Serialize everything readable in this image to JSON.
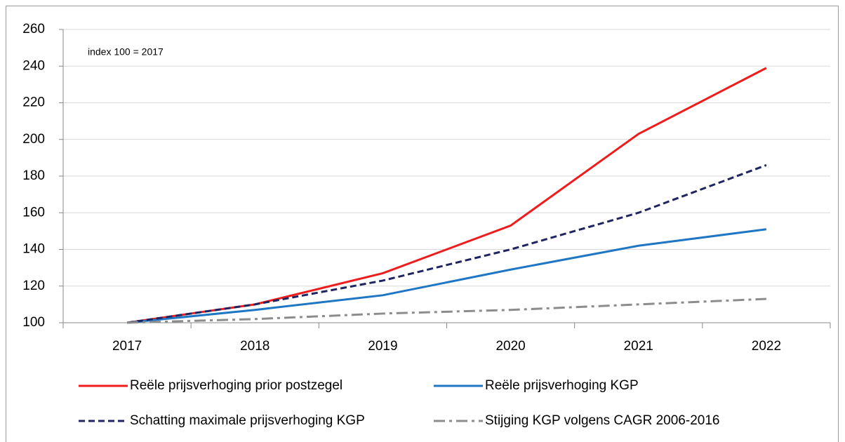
{
  "chart_data": {
    "type": "line",
    "annotation": "index 100 = 2017",
    "categories": [
      "2017",
      "2018",
      "2019",
      "2020",
      "2021",
      "2022"
    ],
    "series": [
      {
        "name": "Reële prijsverhoging prior postzegel",
        "color": "#ee1c1c",
        "dash": "solid",
        "values": [
          100,
          110,
          127,
          153,
          203,
          239
        ]
      },
      {
        "name": "Reële prijsverhoging KGP",
        "color": "#1f77c4",
        "dash": "solid",
        "values": [
          100,
          107,
          115,
          129,
          142,
          151
        ]
      },
      {
        "name": "Schatting maximale prijsverhoging KGP",
        "color": "#1f2560",
        "dash": "dash",
        "values": [
          100,
          110,
          123,
          140,
          160,
          186
        ]
      },
      {
        "name": "Stijging KGP volgens CAGR 2006-2016",
        "color": "#8c8c8c",
        "dash": "dashdot",
        "values": [
          100,
          102,
          105,
          107,
          110,
          113
        ]
      }
    ],
    "ylim": [
      100,
      260
    ],
    "yticks": [
      100,
      120,
      140,
      160,
      180,
      200,
      220,
      240,
      260
    ],
    "grid": true,
    "legend": "bottom"
  }
}
